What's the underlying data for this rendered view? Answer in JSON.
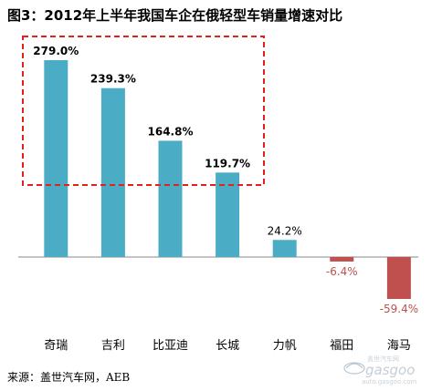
{
  "title": "图3：2012年上半年我国车企在俄轻型车销量增速对比",
  "source": "来源：盖世汽车网，AEB",
  "watermark": {
    "brand": "gasgoo",
    "tagline": "盖世汽车网",
    "url": "auto.gasgoo.com"
  },
  "colors": {
    "positive_bar": "#4bacc6",
    "negative_bar": "#c0504d",
    "positive_label": "#000000",
    "negative_label": "#c0504d",
    "highlight_box": "#e3211c"
  },
  "chart_data": {
    "type": "bar",
    "categories": [
      "奇瑞",
      "吉利",
      "比亚迪",
      "长城",
      "力帆",
      "福田",
      "海马"
    ],
    "values": [
      279.0,
      239.3,
      164.8,
      119.7,
      24.2,
      -6.4,
      -59.4
    ],
    "data_labels": [
      "279.0%",
      "239.3%",
      "164.8%",
      "119.7%",
      "24.2%",
      "-6.4%",
      "-59.4%"
    ],
    "highlighted_categories": [
      "奇瑞",
      "吉利",
      "比亚迪",
      "长城"
    ],
    "xlabel": "",
    "ylabel": "",
    "grid": false,
    "legend": "none"
  }
}
